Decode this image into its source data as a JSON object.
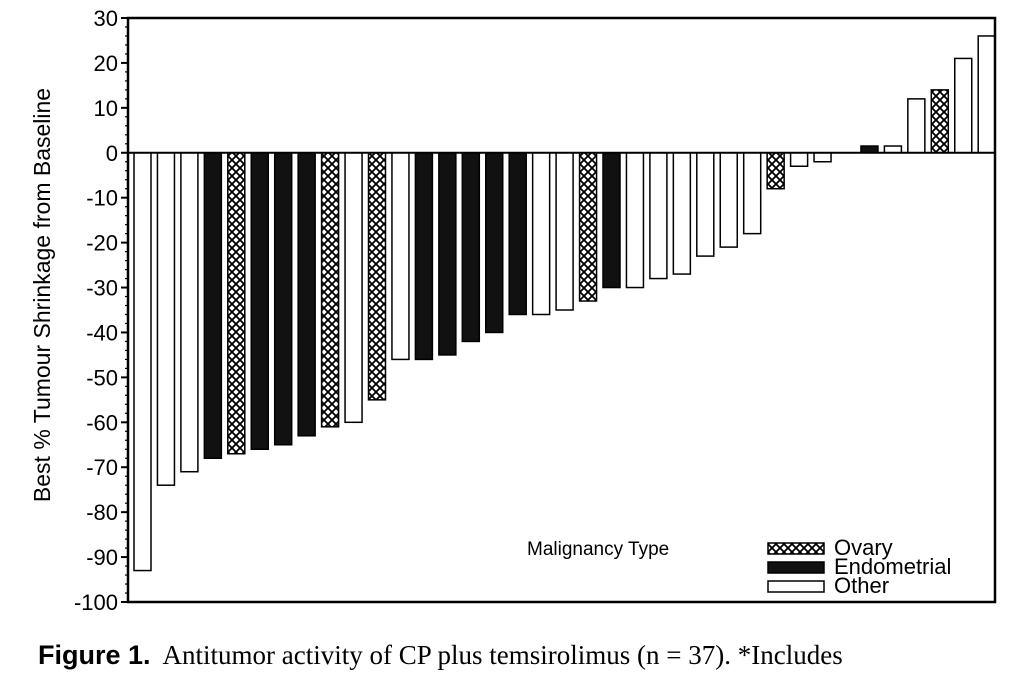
{
  "chart_data": {
    "type": "bar",
    "title": "",
    "xlabel": "",
    "ylabel": "Best % Tumour Shrinkage from Baseline",
    "ylim": [
      -100,
      30
    ],
    "yticks": [
      30,
      20,
      10,
      0,
      -10,
      -20,
      -30,
      -40,
      -50,
      -60,
      -70,
      -80,
      -90,
      -100
    ],
    "grid": false,
    "legend": {
      "title": "Malignancy Type",
      "placement": "bottom-right",
      "entries": [
        {
          "key": "ovary",
          "label": "Ovary"
        },
        {
          "key": "endometrial",
          "label": "Endometrial"
        },
        {
          "key": "other",
          "label": "Other"
        }
      ]
    },
    "bars": [
      {
        "value": -93,
        "type": "other"
      },
      {
        "value": -74,
        "type": "other"
      },
      {
        "value": -71,
        "type": "other"
      },
      {
        "value": -68,
        "type": "endometrial"
      },
      {
        "value": -67,
        "type": "ovary"
      },
      {
        "value": -66,
        "type": "endometrial"
      },
      {
        "value": -65,
        "type": "endometrial"
      },
      {
        "value": -63,
        "type": "endometrial"
      },
      {
        "value": -61,
        "type": "ovary"
      },
      {
        "value": -60,
        "type": "other"
      },
      {
        "value": -55,
        "type": "ovary"
      },
      {
        "value": -46,
        "type": "other"
      },
      {
        "value": -46,
        "type": "endometrial"
      },
      {
        "value": -45,
        "type": "endometrial"
      },
      {
        "value": -42,
        "type": "endometrial"
      },
      {
        "value": -40,
        "type": "endometrial"
      },
      {
        "value": -36,
        "type": "endometrial"
      },
      {
        "value": -36,
        "type": "other"
      },
      {
        "value": -35,
        "type": "other"
      },
      {
        "value": -33,
        "type": "ovary"
      },
      {
        "value": -30,
        "type": "endometrial"
      },
      {
        "value": -30,
        "type": "other"
      },
      {
        "value": -28,
        "type": "other"
      },
      {
        "value": -27,
        "type": "other"
      },
      {
        "value": -23,
        "type": "other"
      },
      {
        "value": -21,
        "type": "other"
      },
      {
        "value": -18,
        "type": "other"
      },
      {
        "value": -8,
        "type": "ovary"
      },
      {
        "value": -3,
        "type": "other"
      },
      {
        "value": -2,
        "type": "other"
      },
      {
        "value": 0,
        "type": "other"
      },
      {
        "value": 1.5,
        "type": "endometrial"
      },
      {
        "value": 1.5,
        "type": "other"
      },
      {
        "value": 12,
        "type": "other"
      },
      {
        "value": 14,
        "type": "ovary"
      },
      {
        "value": 21,
        "type": "other"
      },
      {
        "value": 26,
        "type": "other"
      }
    ]
  },
  "caption": {
    "label": "Figure 1.",
    "text": "Antitumor activity of CP plus temsirolimus (n = 37). *Includes"
  }
}
